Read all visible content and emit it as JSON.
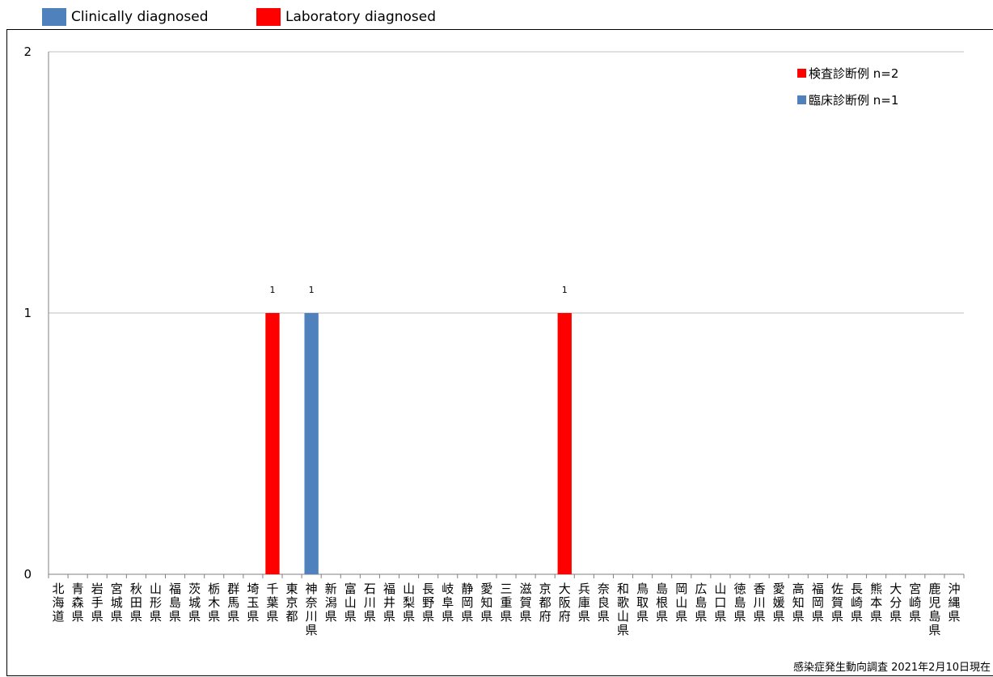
{
  "outer_legend": [
    {
      "label": "Clinically diagnosed",
      "color": "#4f81bd"
    },
    {
      "label": "Laboratory diagnosed",
      "color": "#ff0000"
    }
  ],
  "footnote": "感染症発生動向調査 2021年2月10日現在",
  "chart_data": {
    "type": "bar",
    "stacked": true,
    "ylim": [
      0,
      2
    ],
    "yticks": [
      0,
      1,
      2
    ],
    "grid": true,
    "legend_position": "top-right",
    "categories": [
      "北海道",
      "青森県",
      "岩手県",
      "宮城県",
      "秋田県",
      "山形県",
      "福島県",
      "茨城県",
      "栃木県",
      "群馬県",
      "埼玉県",
      "千葉県",
      "東京都",
      "神奈川県",
      "新潟県",
      "富山県",
      "石川県",
      "福井県",
      "山梨県",
      "長野県",
      "岐阜県",
      "静岡県",
      "愛知県",
      "三重県",
      "滋賀県",
      "京都府",
      "大阪府",
      "兵庫県",
      "奈良県",
      "和歌山県",
      "鳥取県",
      "島根県",
      "岡山県",
      "広島県",
      "山口県",
      "徳島県",
      "香川県",
      "愛媛県",
      "高知県",
      "福岡県",
      "佐賀県",
      "長崎県",
      "熊本県",
      "大分県",
      "宮崎県",
      "鹿児島県",
      "沖縄県"
    ],
    "series": [
      {
        "name": "検査診断例 n=2",
        "color": "#ff0000",
        "values": [
          0,
          0,
          0,
          0,
          0,
          0,
          0,
          0,
          0,
          0,
          0,
          1,
          0,
          0,
          0,
          0,
          0,
          0,
          0,
          0,
          0,
          0,
          0,
          0,
          0,
          0,
          1,
          0,
          0,
          0,
          0,
          0,
          0,
          0,
          0,
          0,
          0,
          0,
          0,
          0,
          0,
          0,
          0,
          0,
          0,
          0,
          0
        ]
      },
      {
        "name": "臨床診断例 n=1",
        "color": "#4f81bd",
        "values": [
          0,
          0,
          0,
          0,
          0,
          0,
          0,
          0,
          0,
          0,
          0,
          0,
          0,
          1,
          0,
          0,
          0,
          0,
          0,
          0,
          0,
          0,
          0,
          0,
          0,
          0,
          0,
          0,
          0,
          0,
          0,
          0,
          0,
          0,
          0,
          0,
          0,
          0,
          0,
          0,
          0,
          0,
          0,
          0,
          0,
          0,
          0
        ]
      }
    ],
    "data_labels": [
      {
        "category": "千葉県",
        "text": "1"
      },
      {
        "category": "神奈川県",
        "text": "1"
      },
      {
        "category": "大阪府",
        "text": "1"
      }
    ]
  }
}
